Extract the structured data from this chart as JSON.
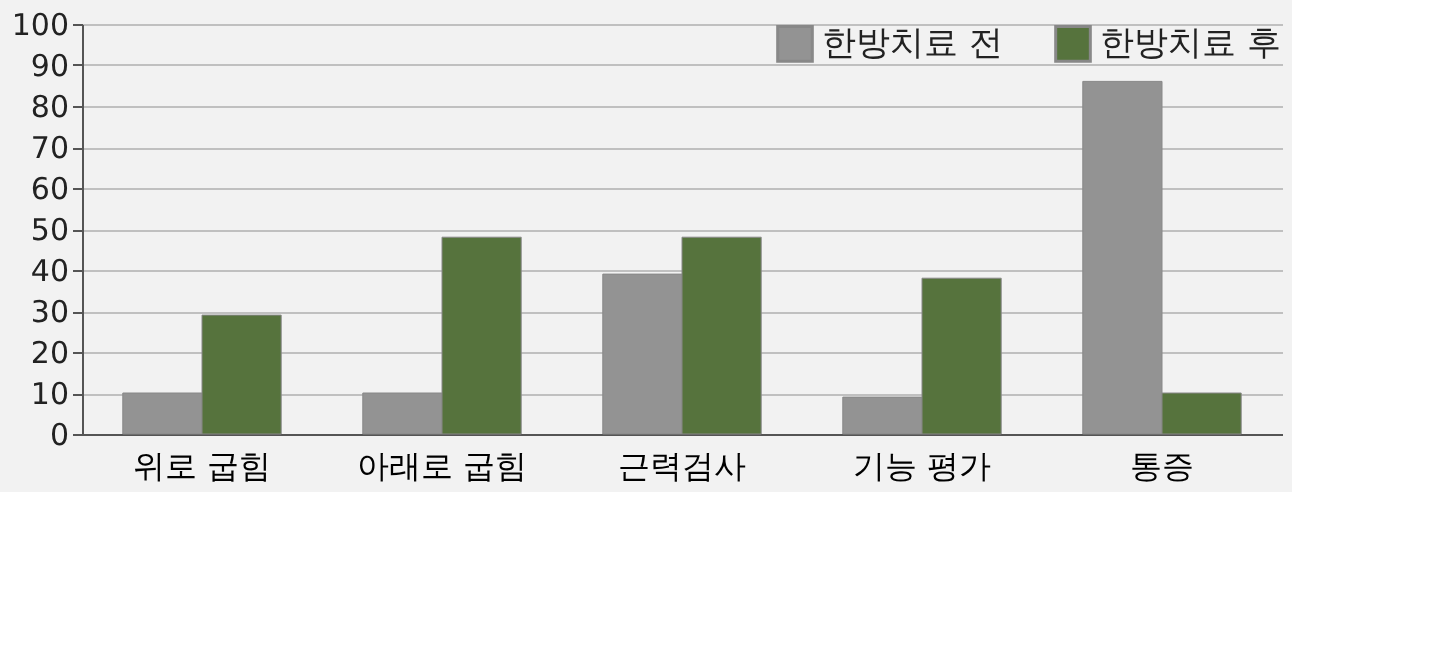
{
  "chart_data": {
    "type": "bar",
    "categories": [
      "위로 굽힘",
      "아래로 굽힘",
      "근력검사",
      "기능 평가",
      "통증"
    ],
    "series": [
      {
        "name": "한방치료 전",
        "color": "#939393",
        "values": [
          10,
          10,
          39,
          9,
          86
        ]
      },
      {
        "name": "한방치료 후",
        "color": "#56733d",
        "values": [
          29,
          48,
          48,
          38,
          10
        ]
      }
    ],
    "ylim": [
      0,
      100
    ],
    "yticks": [
      0,
      10,
      20,
      30,
      40,
      50,
      60,
      70,
      80,
      90,
      100
    ],
    "grid": "y",
    "legend": "top right"
  }
}
